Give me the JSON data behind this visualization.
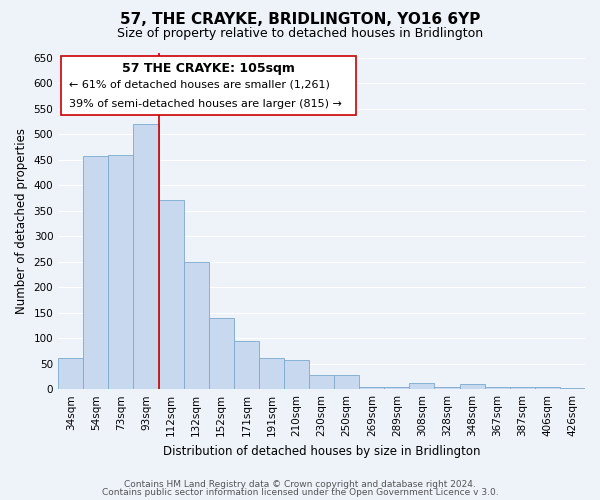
{
  "title": "57, THE CRAYKE, BRIDLINGTON, YO16 6YP",
  "subtitle": "Size of property relative to detached houses in Bridlington",
  "xlabel": "Distribution of detached houses by size in Bridlington",
  "ylabel": "Number of detached properties",
  "footer_line1": "Contains HM Land Registry data © Crown copyright and database right 2024.",
  "footer_line2": "Contains public sector information licensed under the Open Government Licence v 3.0.",
  "bar_labels": [
    "34sqm",
    "54sqm",
    "73sqm",
    "93sqm",
    "112sqm",
    "132sqm",
    "152sqm",
    "171sqm",
    "191sqm",
    "210sqm",
    "230sqm",
    "250sqm",
    "269sqm",
    "289sqm",
    "308sqm",
    "328sqm",
    "348sqm",
    "367sqm",
    "387sqm",
    "406sqm",
    "426sqm"
  ],
  "bar_values": [
    62,
    458,
    460,
    520,
    370,
    250,
    140,
    95,
    62,
    57,
    27,
    28,
    4,
    4,
    12,
    4,
    10,
    4,
    5,
    4,
    2
  ],
  "bar_color": "#c8d8ee",
  "bar_edge_color": "#7aaad0",
  "vline_color": "#cc0000",
  "vline_x_index": 3.5,
  "annotation_title": "57 THE CRAYKE: 105sqm",
  "annotation_line1": "← 61% of detached houses are smaller (1,261)",
  "annotation_line2": "39% of semi-detached houses are larger (815) →",
  "annotation_box_color": "#ffffff",
  "annotation_box_edge": "#cc0000",
  "ylim": [
    0,
    660
  ],
  "yticks": [
    0,
    50,
    100,
    150,
    200,
    250,
    300,
    350,
    400,
    450,
    500,
    550,
    600,
    650
  ],
  "background_color": "#eef2f9",
  "grid_color": "#ffffff",
  "title_fontsize": 11,
  "subtitle_fontsize": 9,
  "axis_label_fontsize": 8.5,
  "tick_fontsize": 7.5,
  "annotation_title_fontsize": 9,
  "annotation_text_fontsize": 8,
  "footer_fontsize": 6.5
}
